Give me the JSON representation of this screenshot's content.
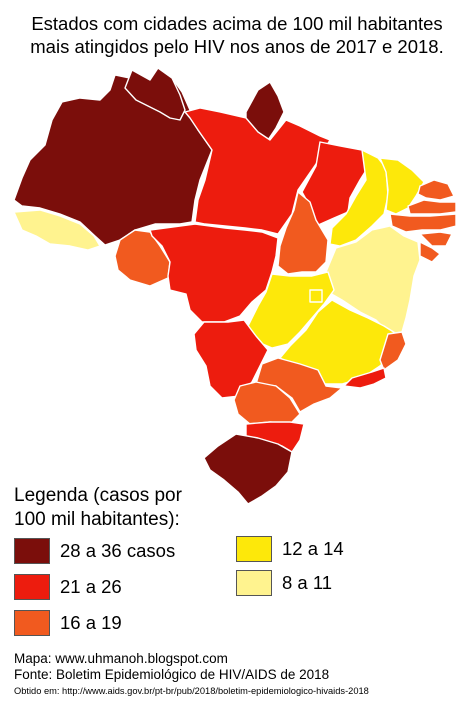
{
  "title": {
    "line1": "Estados com cidades acima de 100 mil habitantes",
    "line2": "mais atingidos pelo HIV nos anos de 2017 e 2018."
  },
  "colors": {
    "dark_red": "#7b0e0b",
    "red": "#ed1c0e",
    "orange": "#f15a1f",
    "yellow": "#fde80a",
    "light_yellow": "#fff38f",
    "border": "#ffffff"
  },
  "legend": {
    "title_line1": "Legenda (casos por",
    "title_line2": "100 mil habitantes):",
    "items": [
      {
        "label": "28 a 36 casos",
        "color": "#7b0e0b"
      },
      {
        "label": "21 a 26",
        "color": "#ed1c0e"
      },
      {
        "label": "16 a 19",
        "color": "#f15a1f"
      },
      {
        "label": "12 a 14",
        "color": "#fde80a"
      },
      {
        "label": "8 a 11",
        "color": "#fff38f"
      }
    ]
  },
  "states": [
    {
      "name": "AC",
      "category": "8 a 11",
      "color": "#fff38f"
    },
    {
      "name": "AM",
      "category": "28 a 36 casos",
      "color": "#7b0e0b"
    },
    {
      "name": "RR",
      "category": "28 a 36 casos",
      "color": "#7b0e0b"
    },
    {
      "name": "AP",
      "category": "28 a 36 casos",
      "color": "#7b0e0b"
    },
    {
      "name": "PA",
      "category": "21 a 26",
      "color": "#ed1c0e"
    },
    {
      "name": "RO",
      "category": "16 a 19",
      "color": "#f15a1f"
    },
    {
      "name": "MT",
      "category": "21 a 26",
      "color": "#ed1c0e"
    },
    {
      "name": "MA",
      "category": "21 a 26",
      "color": "#ed1c0e"
    },
    {
      "name": "TO",
      "category": "16 a 19",
      "color": "#f15a1f"
    },
    {
      "name": "PI",
      "category": "12 a 14",
      "color": "#fde80a"
    },
    {
      "name": "CE",
      "category": "12 a 14",
      "color": "#fde80a"
    },
    {
      "name": "RN",
      "category": "16 a 19",
      "color": "#f15a1f"
    },
    {
      "name": "PB",
      "category": "16 a 19",
      "color": "#f15a1f"
    },
    {
      "name": "PE",
      "category": "16 a 19",
      "color": "#f15a1f"
    },
    {
      "name": "AL",
      "category": "16 a 19",
      "color": "#f15a1f"
    },
    {
      "name": "SE",
      "category": "16 a 19",
      "color": "#f15a1f"
    },
    {
      "name": "BA",
      "category": "8 a 11",
      "color": "#fff38f"
    },
    {
      "name": "GO",
      "category": "12 a 14",
      "color": "#fde80a"
    },
    {
      "name": "DF",
      "category": "12 a 14",
      "color": "#fde80a"
    },
    {
      "name": "MS",
      "category": "21 a 26",
      "color": "#ed1c0e"
    },
    {
      "name": "MG",
      "category": "12 a 14",
      "color": "#fde80a"
    },
    {
      "name": "ES",
      "category": "16 a 19",
      "color": "#f15a1f"
    },
    {
      "name": "RJ",
      "category": "21 a 26",
      "color": "#ed1c0e"
    },
    {
      "name": "SP",
      "category": "16 a 19",
      "color": "#f15a1f"
    },
    {
      "name": "PR",
      "category": "16 a 19",
      "color": "#f15a1f"
    },
    {
      "name": "SC",
      "category": "21 a 26",
      "color": "#ed1c0e"
    },
    {
      "name": "RS",
      "category": "28 a 36 casos",
      "color": "#7b0e0b"
    }
  ],
  "source": {
    "map": "Mapa: www.uhmanoh.blogspot.com",
    "fonte": "Fonte: Boletim Epidemiológico de HIV/AIDS de 2018",
    "obtido": "Obtido em: http://www.aids.gov.br/pt-br/pub/2018/boletim-epidemiologico-hivaids-2018"
  }
}
